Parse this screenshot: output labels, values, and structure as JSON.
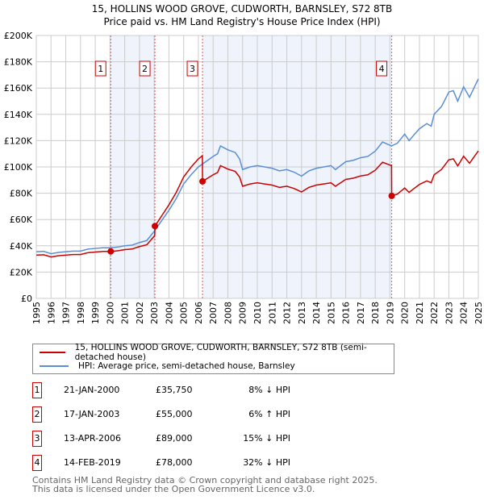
{
  "chart_data": {
    "type": "line",
    "title": "15, HOLLINS WOOD GROVE, CUDWORTH, BARNSLEY, S72 8TB",
    "subtitle": "Price paid vs. HM Land Registry's House Price Index (HPI)",
    "xlim": [
      1995,
      2025
    ],
    "ylim": [
      0,
      200000
    ],
    "y_ticks": [
      0,
      20000,
      40000,
      60000,
      80000,
      100000,
      120000,
      140000,
      160000,
      180000,
      200000
    ],
    "y_tick_labels": [
      "£0",
      "£20K",
      "£40K",
      "£60K",
      "£80K",
      "£100K",
      "£120K",
      "£140K",
      "£160K",
      "£180K",
      "£200K"
    ],
    "x_ticks": [
      1995,
      1996,
      1997,
      1998,
      1999,
      2000,
      2001,
      2002,
      2003,
      2004,
      2005,
      2006,
      2007,
      2008,
      2009,
      2010,
      2011,
      2012,
      2013,
      2014,
      2015,
      2016,
      2017,
      2018,
      2019,
      2020,
      2021,
      2022,
      2023,
      2024,
      2025
    ],
    "grid": true,
    "colors": {
      "property": "#cc0000",
      "hpi": "#5b8fd4",
      "shade": "#eef3fc"
    },
    "hpi": {
      "name": "HPI: Average price, semi-detached house, Barnsley",
      "x": [
        1995,
        1995.5,
        1996,
        1996.5,
        1997,
        1997.5,
        1998,
        1998.5,
        1999,
        1999.5,
        2000,
        2000.5,
        2001,
        2001.5,
        2002,
        2002.5,
        2003,
        2003.5,
        2004,
        2004.5,
        2005,
        2005.5,
        2006,
        2006.5,
        2007,
        2007.3,
        2007.5,
        2008,
        2008.5,
        2008.8,
        2009,
        2009.5,
        2010,
        2010.5,
        2011,
        2011.5,
        2012,
        2012.5,
        2013,
        2013.5,
        2014,
        2014.5,
        2015,
        2015.3,
        2016,
        2016.5,
        2017,
        2017.5,
        2018,
        2018.5,
        2019.1,
        2019.5,
        2020,
        2020.3,
        2020.6,
        2021,
        2021.5,
        2021.8,
        2022,
        2022.5,
        2023,
        2023.3,
        2023.6,
        2024,
        2024.4,
        2024.7,
        2025
      ],
      "y": [
        35500,
        35800,
        34000,
        35000,
        35500,
        36000,
        36000,
        37500,
        38000,
        38500,
        38500,
        39000,
        40000,
        40500,
        42500,
        44000,
        51000,
        59000,
        67000,
        76000,
        87000,
        94000,
        100000,
        104000,
        108000,
        110000,
        116000,
        113000,
        111000,
        106000,
        98000,
        100000,
        101000,
        100000,
        99000,
        97000,
        98000,
        96000,
        93000,
        97000,
        99000,
        100000,
        101000,
        98000,
        104000,
        105000,
        107000,
        108000,
        112000,
        119000,
        116000,
        118000,
        125000,
        120000,
        124000,
        129000,
        133000,
        131000,
        140000,
        146000,
        157000,
        158000,
        150000,
        161000,
        153000,
        160000,
        167000
      ]
    },
    "property": {
      "name": "15, HOLLINS WOOD GROVE, CUDWORTH, BARNSLEY, S72 8TB (semi-detached house)"
    },
    "sales": [
      {
        "id": "1",
        "x": 2000.05,
        "date": "21-JAN-2000",
        "price": 35750,
        "price_label": "£35,750",
        "hpi_label": "8% ↓ HPI"
      },
      {
        "id": "2",
        "x": 2003.05,
        "date": "17-JAN-2003",
        "price": 55000,
        "price_label": "£55,000",
        "hpi_label": "6% ↑ HPI"
      },
      {
        "id": "3",
        "x": 2006.28,
        "date": "13-APR-2006",
        "price": 89000,
        "price_label": "£89,000",
        "hpi_label": "15% ↓ HPI"
      },
      {
        "id": "4",
        "x": 2019.12,
        "date": "14-FEB-2019",
        "price": 78000,
        "price_label": "£78,000",
        "hpi_label": "32% ↓ HPI"
      }
    ]
  },
  "footer": {
    "line1": "Contains HM Land Registry data © Crown copyright and database right 2025.",
    "line2": "This data is licensed under the Open Government Licence v3.0."
  }
}
